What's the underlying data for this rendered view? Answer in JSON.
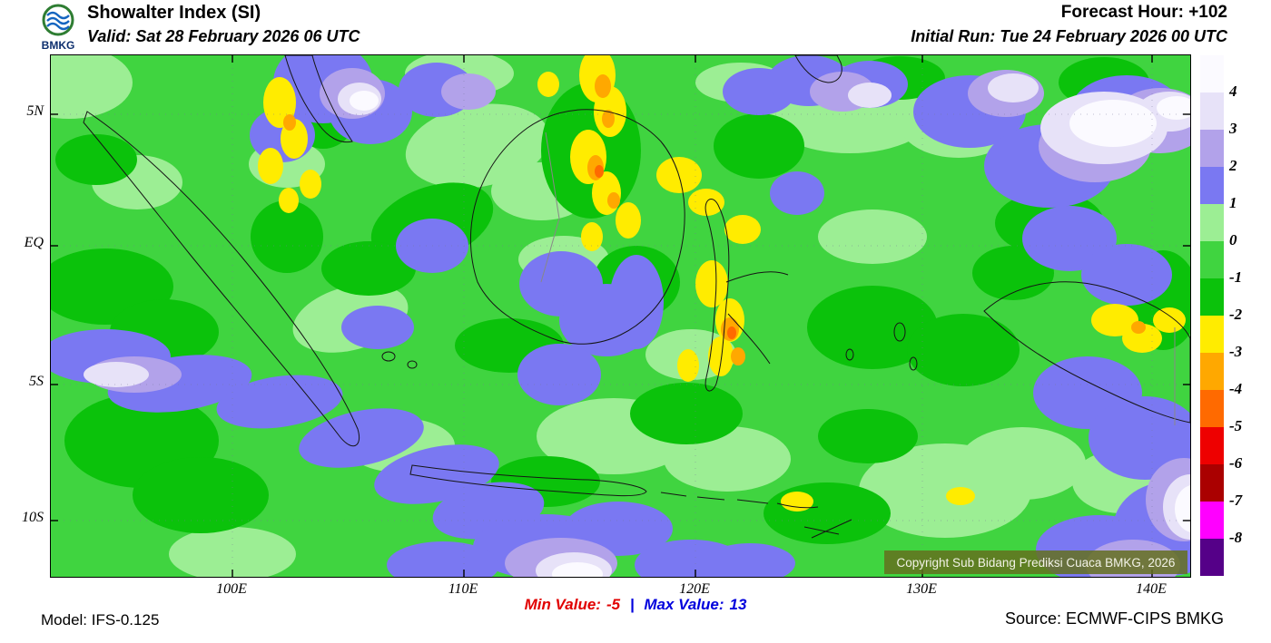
{
  "header": {
    "logo_text": "BMKG",
    "title": "Showalter Index (SI)",
    "valid": "Valid: Sat 28 February 2026 06 UTC",
    "forecast_hour": "Forecast Hour: +102",
    "initial_run": "Initial Run: Tue 24 February 2026 00 UTC"
  },
  "map": {
    "lat_labels": [
      "5N",
      "EQ",
      "5S",
      "10S"
    ],
    "lon_labels": [
      "100E",
      "110E",
      "120E",
      "130E",
      "140E"
    ],
    "copyright": "Copyright Sub Bidang Prediksi Cuaca BMKG, 2026",
    "copyright_bg": "#64701f",
    "field_blobs": [
      [
        4,
        20,
        30,
        70,
        40,
        0
      ],
      [
        4,
        470,
        100,
        80,
        45,
        -10
      ],
      [
        4,
        540,
        150,
        55,
        32,
        0
      ],
      [
        4,
        880,
        60,
        95,
        48,
        0
      ],
      [
        4,
        1000,
        75,
        65,
        38,
        0
      ],
      [
        4,
        95,
        140,
        50,
        30,
        0
      ],
      [
        4,
        330,
        290,
        65,
        35,
        -15
      ],
      [
        4,
        620,
        420,
        85,
        42,
        0
      ],
      [
        4,
        745,
        445,
        70,
        36,
        0
      ],
      [
        4,
        985,
        480,
        95,
        52,
        0
      ],
      [
        4,
        1070,
        450,
        70,
        40,
        0
      ],
      [
        4,
        260,
        120,
        42,
        26,
        0
      ],
      [
        4,
        705,
        330,
        50,
        28,
        0
      ],
      [
        4,
        385,
        430,
        60,
        30,
        0
      ],
      [
        4,
        565,
        225,
        50,
        26,
        0
      ],
      [
        4,
        905,
        200,
        60,
        30,
        0
      ],
      [
        4,
        450,
        20,
        60,
        25,
        0
      ],
      [
        4,
        760,
        30,
        50,
        22,
        0
      ],
      [
        4,
        1180,
        470,
        55,
        35,
        0
      ],
      [
        4,
        200,
        550,
        70,
        30,
        0
      ],
      [
        6,
        60,
        255,
        75,
        42,
        0
      ],
      [
        6,
        125,
        305,
        60,
        36,
        0
      ],
      [
        6,
        100,
        425,
        85,
        52,
        0
      ],
      [
        6,
        165,
        485,
        75,
        42,
        0
      ],
      [
        6,
        420,
        185,
        70,
        40,
        -20
      ],
      [
        6,
        350,
        235,
        52,
        30,
        0
      ],
      [
        6,
        595,
        105,
        55,
        75,
        0
      ],
      [
        6,
        645,
        250,
        48,
        40,
        0
      ],
      [
        6,
        700,
        395,
        62,
        34,
        0
      ],
      [
        6,
        780,
        100,
        50,
        36,
        0
      ],
      [
        6,
        905,
        300,
        72,
        46,
        0
      ],
      [
        6,
        1005,
        325,
        62,
        40,
        0
      ],
      [
        6,
        1100,
        185,
        60,
        35,
        0
      ],
      [
        6,
        1160,
        30,
        50,
        28,
        0
      ],
      [
        6,
        505,
        320,
        60,
        30,
        0
      ],
      [
        6,
        855,
        505,
        70,
        34,
        0
      ],
      [
        6,
        300,
        55,
        40,
        48,
        0
      ],
      [
        6,
        1225,
        270,
        40,
        55,
        0
      ],
      [
        6,
        935,
        25,
        50,
        24,
        0
      ],
      [
        6,
        50,
        115,
        45,
        28,
        0
      ],
      [
        6,
        545,
        470,
        60,
        28,
        0
      ],
      [
        6,
        260,
        200,
        40,
        40,
        0
      ],
      [
        6,
        1060,
        240,
        45,
        30,
        0
      ],
      [
        6,
        900,
        420,
        55,
        30,
        0
      ],
      [
        3,
        300,
        30,
        55,
        45,
        0
      ],
      [
        3,
        352,
        62,
        46,
        36,
        0
      ],
      [
        3,
        255,
        88,
        36,
        30,
        0
      ],
      [
        3,
        425,
        38,
        42,
        30,
        0
      ],
      [
        3,
        780,
        40,
        40,
        26,
        0
      ],
      [
        3,
        835,
        28,
        46,
        28,
        0
      ],
      [
        3,
        1012,
        62,
        62,
        40,
        0
      ],
      [
        3,
        1100,
        122,
        72,
        46,
        0
      ],
      [
        3,
        1185,
        62,
        62,
        40,
        0
      ],
      [
        3,
        60,
        332,
        72,
        30,
        0
      ],
      [
        3,
        142,
        362,
        80,
        30,
        -8
      ],
      [
        3,
        252,
        382,
        70,
        28,
        -8
      ],
      [
        3,
        342,
        422,
        70,
        30,
        -12
      ],
      [
        3,
        425,
        462,
        70,
        30,
        -12
      ],
      [
        3,
        482,
        502,
        62,
        30,
        -10
      ],
      [
        3,
        545,
        542,
        80,
        36,
        0
      ],
      [
        3,
        625,
        522,
        60,
        30,
        0
      ],
      [
        3,
        562,
        252,
        46,
        36,
        0
      ],
      [
        3,
        612,
        292,
        52,
        40,
        0
      ],
      [
        3,
        560,
        352,
        46,
        34,
        0
      ],
      [
        3,
        1122,
        202,
        52,
        36,
        0
      ],
      [
        3,
        1185,
        242,
        50,
        34,
        0
      ],
      [
        3,
        1142,
        372,
        60,
        40,
        0
      ],
      [
        3,
        1205,
        422,
        62,
        46,
        0
      ],
      [
        3,
        1232,
        522,
        62,
        52,
        0
      ],
      [
        3,
        1155,
        545,
        70,
        38,
        0
      ],
      [
        3,
        705,
        562,
        62,
        28,
        0
      ],
      [
        3,
        432,
        562,
        62,
        26,
        0
      ],
      [
        3,
        902,
        32,
        42,
        26,
        0
      ],
      [
        3,
        645,
        272,
        30,
        52,
        0
      ],
      [
        3,
        822,
        152,
        30,
        24,
        0
      ],
      [
        3,
        360,
        300,
        40,
        24,
        0
      ],
      [
        3,
        770,
        560,
        50,
        22,
        0
      ],
      [
        3,
        420,
        210,
        40,
        30,
        0
      ],
      [
        2,
        332,
        42,
        36,
        28,
        0
      ],
      [
        2,
        1150,
        100,
        62,
        40,
        0
      ],
      [
        2,
        1222,
        72,
        52,
        36,
        0
      ],
      [
        2,
        92,
        352,
        52,
        20,
        0
      ],
      [
        2,
        562,
        560,
        62,
        28,
        0
      ],
      [
        2,
        1248,
        490,
        42,
        46,
        0
      ],
      [
        2,
        1192,
        562,
        52,
        28,
        0
      ],
      [
        2,
        872,
        40,
        36,
        22,
        0
      ],
      [
        2,
        1052,
        42,
        42,
        26,
        0
      ],
      [
        2,
        460,
        40,
        30,
        20,
        0
      ],
      [
        1,
        340,
        48,
        24,
        18,
        0
      ],
      [
        1,
        1160,
        80,
        70,
        40,
        0
      ],
      [
        1,
        1232,
        62,
        36,
        22,
        0
      ],
      [
        1,
        72,
        352,
        36,
        14,
        0
      ],
      [
        1,
        576,
        568,
        42,
        20,
        0
      ],
      [
        1,
        1255,
        498,
        30,
        36,
        0
      ],
      [
        1,
        902,
        44,
        24,
        14,
        0
      ],
      [
        1,
        1060,
        36,
        28,
        16,
        0
      ],
      [
        0,
        345,
        50,
        16,
        11,
        0
      ],
      [
        0,
        1170,
        75,
        48,
        26,
        0
      ],
      [
        0,
        1240,
        58,
        22,
        13,
        0
      ],
      [
        0,
        580,
        572,
        28,
        13,
        0
      ],
      [
        0,
        1258,
        500,
        20,
        26,
        0
      ],
      [
        7,
        252,
        52,
        18,
        28,
        0
      ],
      [
        7,
        268,
        92,
        15,
        22,
        0
      ],
      [
        7,
        242,
        122,
        14,
        20,
        0
      ],
      [
        7,
        286,
        142,
        12,
        16,
        0
      ],
      [
        7,
        602,
        22,
        20,
        30,
        0
      ],
      [
        7,
        616,
        62,
        18,
        28,
        0
      ],
      [
        7,
        592,
        112,
        20,
        30,
        0
      ],
      [
        7,
        612,
        152,
        16,
        24,
        0
      ],
      [
        7,
        636,
        182,
        14,
        20,
        0
      ],
      [
        7,
        692,
        132,
        25,
        20,
        0
      ],
      [
        7,
        722,
        162,
        20,
        15,
        0
      ],
      [
        7,
        728,
        252,
        18,
        26,
        0
      ],
      [
        7,
        748,
        292,
        16,
        24,
        0
      ],
      [
        7,
        738,
        332,
        14,
        22,
        0
      ],
      [
        7,
        762,
        192,
        20,
        16,
        0
      ],
      [
        7,
        702,
        342,
        12,
        18,
        0
      ],
      [
        7,
        1172,
        292,
        26,
        18,
        0
      ],
      [
        7,
        1202,
        312,
        22,
        16,
        0
      ],
      [
        7,
        1232,
        292,
        18,
        14,
        0
      ],
      [
        7,
        822,
        492,
        18,
        11,
        0
      ],
      [
        7,
        1002,
        486,
        16,
        10,
        0
      ],
      [
        7,
        548,
        32,
        12,
        14,
        0
      ],
      [
        7,
        262,
        160,
        11,
        14,
        0
      ],
      [
        7,
        596,
        200,
        12,
        16,
        0
      ],
      [
        8,
        608,
        34,
        9,
        13,
        0
      ],
      [
        8,
        600,
        124,
        9,
        14,
        0
      ],
      [
        8,
        748,
        302,
        10,
        13,
        0
      ],
      [
        8,
        757,
        332,
        8,
        10,
        0
      ],
      [
        8,
        263,
        74,
        7,
        9,
        0
      ],
      [
        8,
        620,
        160,
        7,
        9,
        0
      ],
      [
        8,
        1198,
        300,
        8,
        7,
        0
      ],
      [
        8,
        614,
        70,
        7,
        10,
        0
      ],
      [
        9,
        750,
        306,
        5,
        7,
        0
      ],
      [
        9,
        604,
        128,
        5,
        7,
        0
      ]
    ]
  },
  "legend": {
    "labels": [
      "4",
      "3",
      "2",
      "1",
      "0",
      "-1",
      "-2",
      "-3",
      "-4",
      "-5",
      "-6",
      "-7",
      "-8"
    ],
    "colors": [
      "#fbfaff",
      "#e7e2f8",
      "#b2a2ea",
      "#7a78f2",
      "#9cee94",
      "#40d440",
      "#0bc20b",
      "#ffec00",
      "#ffa800",
      "#ff6a00",
      "#ee0000",
      "#aa0000",
      "#ff00ff",
      "#550088"
    ]
  },
  "footer": {
    "model": "Model: IFS-0.125",
    "min_label": "Min Value:",
    "min_value": "-5",
    "separator": "|",
    "max_label": "Max Value:",
    "max_value": "13",
    "source": "Source: ECMWF-CIPS BMKG",
    "min_color": "#e10000",
    "max_color": "#0000dd",
    "separator_color": "#0000dd"
  }
}
